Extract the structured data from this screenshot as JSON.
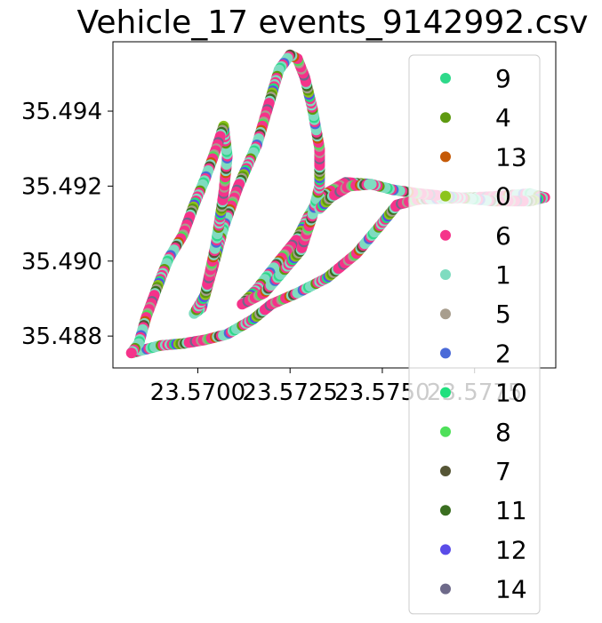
{
  "chart_data": {
    "type": "scatter",
    "title": "Vehicle_17 events_9142992.csv",
    "xlabel": "",
    "ylabel": "",
    "xlim": [
      23.5677,
      23.5797
    ],
    "ylim": [
      35.48715,
      35.49585
    ],
    "x_ticks": [
      23.57,
      23.5725,
      23.575,
      23.5775
    ],
    "x_tick_labels": [
      "23.5700",
      "23.5725",
      "23.5750",
      "23.5775"
    ],
    "y_ticks": [
      35.488,
      35.49,
      35.492,
      35.494
    ],
    "y_tick_labels": [
      "35.488",
      "35.490",
      "35.492",
      "35.494"
    ],
    "grid": false,
    "legend_position": "upper-right",
    "series": [
      {
        "name": "9",
        "color": "#2ed98a"
      },
      {
        "name": "4",
        "color": "#5e9a10"
      },
      {
        "name": "13",
        "color": "#c55a08"
      },
      {
        "name": "0",
        "color": "#8cc41c"
      },
      {
        "name": "6",
        "color": "#f5338a"
      },
      {
        "name": "1",
        "color": "#7fdcc0"
      },
      {
        "name": "5",
        "color": "#a89e8e"
      },
      {
        "name": "2",
        "color": "#4a6ad8"
      },
      {
        "name": "10",
        "color": "#20e07e"
      },
      {
        "name": "8",
        "color": "#4ee05a"
      },
      {
        "name": "7",
        "color": "#555535"
      },
      {
        "name": "11",
        "color": "#3a6e20"
      },
      {
        "name": "12",
        "color": "#5a4ce8"
      },
      {
        "name": "14",
        "color": "#6e6a8a"
      }
    ],
    "track": [
      [
        23.5682,
        35.48755
      ],
      [
        23.5684,
        35.4876
      ],
      [
        23.569,
        35.48775
      ],
      [
        23.5696,
        35.4878
      ],
      [
        23.5702,
        35.4879
      ],
      [
        23.5708,
        35.48805
      ],
      [
        23.5715,
        35.48845
      ],
      [
        23.572,
        35.48885
      ],
      [
        23.5727,
        35.48915
      ],
      [
        23.5735,
        35.48955
      ],
      [
        23.5743,
        35.4902
      ],
      [
        23.5749,
        35.4909
      ],
      [
        23.5754,
        35.4915
      ],
      [
        23.576,
        35.49165
      ],
      [
        23.577,
        35.49168
      ],
      [
        23.578,
        35.49172
      ],
      [
        23.579,
        35.4918
      ],
      [
        23.5794,
        35.4917
      ],
      [
        23.579,
        35.4916
      ],
      [
        23.578,
        35.4916
      ],
      [
        23.577,
        35.4917
      ],
      [
        23.576,
        35.4918
      ],
      [
        23.5753,
        35.4919
      ],
      [
        23.5747,
        35.49205
      ],
      [
        23.574,
        35.4921
      ],
      [
        23.5733,
        35.4917
      ],
      [
        23.573,
        35.4912
      ],
      [
        23.5727,
        35.4906
      ],
      [
        23.5722,
        35.49
      ],
      [
        23.5716,
        35.48925
      ],
      [
        23.5712,
        35.48885
      ],
      [
        23.5718,
        35.48915
      ],
      [
        23.5722,
        35.4896
      ],
      [
        23.5728,
        35.4903
      ],
      [
        23.5731,
        35.4912
      ],
      [
        23.5733,
        35.492
      ],
      [
        23.5733,
        35.493
      ],
      [
        23.5731,
        35.4941
      ],
      [
        23.5729,
        35.4949
      ],
      [
        23.5727,
        35.4954
      ],
      [
        23.5725,
        35.4955
      ],
      [
        23.5722,
        35.4951
      ],
      [
        23.5719,
        35.4941
      ],
      [
        23.5716,
        35.4931
      ],
      [
        23.5711,
        35.492
      ],
      [
        23.5707,
        35.4909
      ],
      [
        23.5704,
        35.4898
      ],
      [
        23.5701,
        35.48875
      ],
      [
        23.5699,
        35.4886
      ],
      [
        23.5702,
        35.4891
      ],
      [
        23.5705,
        35.4905
      ],
      [
        23.5707,
        35.4918
      ],
      [
        23.5708,
        35.4928
      ],
      [
        23.5707,
        35.4936
      ],
      [
        23.5705,
        35.493
      ],
      [
        23.5702,
        35.4922
      ],
      [
        23.5699,
        35.4915
      ],
      [
        23.5696,
        35.4907
      ],
      [
        23.5692,
        35.49005
      ],
      [
        23.5689,
        35.4893
      ],
      [
        23.5686,
        35.4885
      ],
      [
        23.5684,
        35.4878
      ],
      [
        23.5682,
        35.48755
      ]
    ],
    "branch": [
      [
        23.5733,
        35.4914
      ],
      [
        23.5736,
        35.4917
      ],
      [
        23.5741,
        35.492
      ],
      [
        23.5747,
        35.49205
      ]
    ]
  }
}
